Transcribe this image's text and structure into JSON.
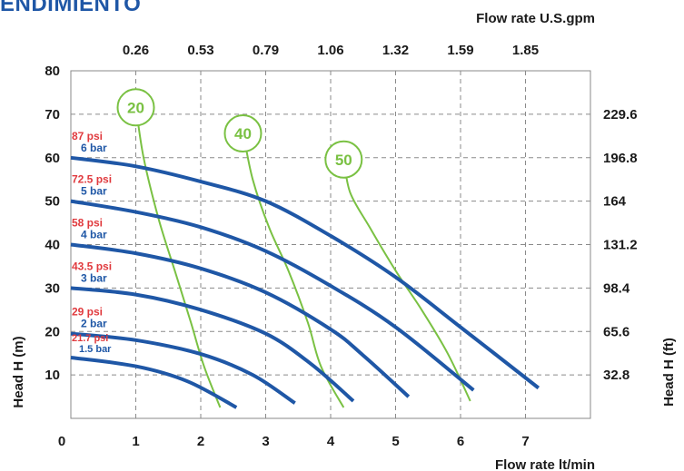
{
  "heading": "ENDIMIENTO",
  "chart_data": {
    "type": "line",
    "x_axis_bottom": {
      "label": "Flow rate  lt/min",
      "range": [
        0,
        8
      ],
      "ticks": [
        0,
        1,
        2,
        3,
        4,
        5,
        6,
        7
      ]
    },
    "x_axis_top": {
      "label": "Flow rate U.S.gpm",
      "tick_labels": [
        "0.26",
        "0.53",
        "0.79",
        "1.06",
        "1.32",
        "1.59",
        "1.85"
      ],
      "tick_positions_lt_min": [
        1,
        2,
        3,
        4,
        5,
        6,
        7
      ]
    },
    "y_axis_left": {
      "label": "Head H (m)",
      "range": [
        0,
        80
      ],
      "ticks": [
        10,
        20,
        30,
        40,
        50,
        60,
        70,
        80
      ]
    },
    "y_axis_right": {
      "label": "Head H (ft)",
      "tick_labels": [
        "32.8",
        "65.6",
        "98.4",
        "131.2",
        "164",
        "196.8",
        "229.6"
      ],
      "tick_positions_m": [
        10,
        20,
        30,
        40,
        50,
        60,
        70
      ]
    },
    "grid": true,
    "colors": {
      "pressure_curve": "#1f57a6",
      "speed_curve": "#7ac143",
      "psi_label": "#e03a3e",
      "bar_label": "#1f57a6",
      "axis_text": "#1a1a1a",
      "grid": "#8a8a8a"
    },
    "pressure_series": [
      {
        "psi": "87 psi",
        "bar": "6 bar",
        "points": [
          [
            0,
            60
          ],
          [
            1,
            58
          ],
          [
            2,
            54.5
          ],
          [
            3,
            50
          ],
          [
            4,
            42
          ],
          [
            5,
            32.5
          ],
          [
            6,
            21
          ],
          [
            7.2,
            7
          ]
        ]
      },
      {
        "psi": "72.5 psi",
        "bar": "5 bar",
        "points": [
          [
            0,
            50
          ],
          [
            1,
            47.5
          ],
          [
            2,
            44
          ],
          [
            3,
            38.5
          ],
          [
            4,
            30.5
          ],
          [
            5,
            21
          ],
          [
            6.2,
            6.5
          ]
        ]
      },
      {
        "psi": "58 psi",
        "bar": "4 bar",
        "points": [
          [
            0,
            40
          ],
          [
            1,
            38
          ],
          [
            2,
            34.5
          ],
          [
            3,
            29
          ],
          [
            4,
            20.5
          ],
          [
            4.5,
            14.5
          ],
          [
            5.2,
            5
          ]
        ]
      },
      {
        "psi": "43.5 psi",
        "bar": "3 bar",
        "points": [
          [
            0,
            30
          ],
          [
            1,
            28.5
          ],
          [
            2,
            25
          ],
          [
            3,
            19.5
          ],
          [
            3.7,
            12.5
          ],
          [
            4.35,
            4
          ]
        ]
      },
      {
        "psi": "29 psi",
        "bar": "2 bar",
        "points": [
          [
            0,
            19.5
          ],
          [
            1,
            18
          ],
          [
            2,
            14.8
          ],
          [
            2.8,
            10
          ],
          [
            3.45,
            3.5
          ]
        ]
      },
      {
        "psi": "21.7 psi",
        "bar": "1.5 bar",
        "points": [
          [
            0,
            14
          ],
          [
            1,
            12
          ],
          [
            1.8,
            8.5
          ],
          [
            2.55,
            2.5
          ]
        ]
      }
    ],
    "speed_series": [
      {
        "name": "20",
        "points": [
          [
            1,
            72
          ],
          [
            1.12,
            60
          ],
          [
            1.35,
            46
          ],
          [
            1.6,
            34
          ],
          [
            1.85,
            22
          ],
          [
            2.05,
            12
          ],
          [
            2.3,
            2.5
          ]
        ]
      },
      {
        "name": "40",
        "points": [
          [
            2.65,
            66
          ],
          [
            2.8,
            55
          ],
          [
            3.05,
            44
          ],
          [
            3.35,
            34
          ],
          [
            3.65,
            22
          ],
          [
            3.85,
            12
          ],
          [
            4.2,
            2.5
          ]
        ]
      },
      {
        "name": "50",
        "points": [
          [
            4.2,
            60
          ],
          [
            4.3,
            52
          ],
          [
            4.6,
            44
          ],
          [
            5.0,
            34
          ],
          [
            5.4,
            25
          ],
          [
            5.8,
            15
          ],
          [
            6.15,
            4
          ]
        ]
      }
    ]
  }
}
